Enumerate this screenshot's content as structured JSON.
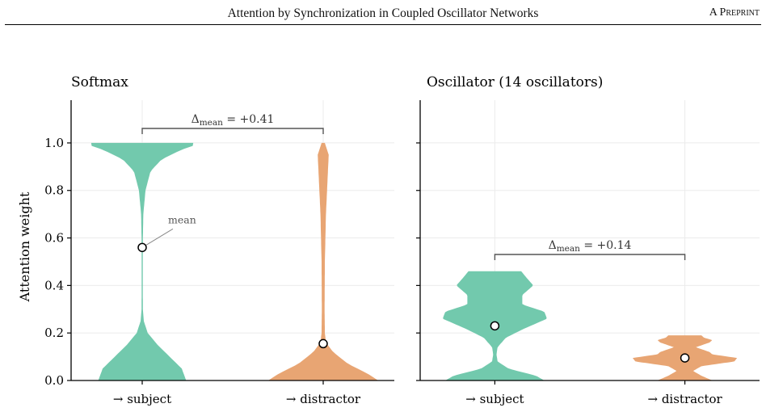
{
  "header": {
    "title": "Attention by Synchronization in Coupled Oscillator Networks",
    "tag": "A Preprint"
  },
  "colors": {
    "subject": "#72c9ad",
    "distractor": "#e8a573",
    "bracket": "#555555",
    "grid": "#ebebeb"
  },
  "chart_data": [
    {
      "type": "violin",
      "title": "Softmax",
      "ylabel": "Attention weight",
      "xlabel": "",
      "ylim": [
        0,
        1.18
      ],
      "yticks": [
        "0.0",
        "0.2",
        "0.4",
        "0.6",
        "0.8",
        "1.0"
      ],
      "ytick_values": [
        0,
        0.2,
        0.4,
        0.6,
        0.8,
        1.0
      ],
      "categories": [
        "→ subject",
        "→ distractor"
      ],
      "means": [
        0.56,
        0.155
      ],
      "density": [
        [
          [
            0,
            0.8
          ],
          [
            0.05,
            0.72
          ],
          [
            0.1,
            0.5
          ],
          [
            0.15,
            0.28
          ],
          [
            0.2,
            0.1
          ],
          [
            0.25,
            0.03
          ],
          [
            0.3,
            0.012
          ],
          [
            0.4,
            0.01
          ],
          [
            0.5,
            0.01
          ],
          [
            0.6,
            0.012
          ],
          [
            0.7,
            0.02
          ],
          [
            0.8,
            0.06
          ],
          [
            0.88,
            0.15
          ],
          [
            0.93,
            0.35
          ],
          [
            0.97,
            0.7
          ],
          [
            0.99,
            0.95
          ],
          [
            1.0,
            0.93
          ]
        ],
        [
          [
            0,
            1.0
          ],
          [
            0.03,
            0.8
          ],
          [
            0.07,
            0.45
          ],
          [
            0.12,
            0.18
          ],
          [
            0.16,
            0.05
          ],
          [
            0.2,
            0.03
          ],
          [
            0.3,
            0.025
          ],
          [
            0.5,
            0.03
          ],
          [
            0.7,
            0.05
          ],
          [
            0.85,
            0.08
          ],
          [
            0.95,
            0.1
          ],
          [
            1.0,
            0.03
          ]
        ]
      ],
      "annotation": {
        "text": "mean"
      },
      "bracket": {
        "label_symbol": "Δ",
        "label_sub": "mean",
        "label_value": " = +0.41"
      }
    },
    {
      "type": "violin",
      "title": "Oscillator (14 oscillators)",
      "xlabel": "",
      "ylim": [
        0,
        1.18
      ],
      "ytick_values": [
        0,
        0.2,
        0.4,
        0.6,
        0.8,
        1.0
      ],
      "categories": [
        "→ subject",
        "→ distractor"
      ],
      "means": [
        0.23,
        0.095
      ],
      "density": [
        [
          [
            0,
            0.9
          ],
          [
            0.02,
            0.75
          ],
          [
            0.05,
            0.25
          ],
          [
            0.08,
            0.05
          ],
          [
            0.11,
            0.03
          ],
          [
            0.14,
            0.05
          ],
          [
            0.18,
            0.2
          ],
          [
            0.22,
            0.55
          ],
          [
            0.26,
            0.95
          ],
          [
            0.29,
            0.9
          ],
          [
            0.32,
            0.5
          ],
          [
            0.36,
            0.5
          ],
          [
            0.4,
            0.7
          ],
          [
            0.44,
            0.55
          ],
          [
            0.46,
            0.48
          ]
        ],
        [
          [
            0,
            0.5
          ],
          [
            0.02,
            0.3
          ],
          [
            0.04,
            0.15
          ],
          [
            0.06,
            0.3
          ],
          [
            0.08,
            0.9
          ],
          [
            0.095,
            0.95
          ],
          [
            0.11,
            0.5
          ],
          [
            0.12,
            0.45
          ],
          [
            0.14,
            0.2
          ],
          [
            0.16,
            0.45
          ],
          [
            0.17,
            0.5
          ],
          [
            0.18,
            0.35
          ],
          [
            0.19,
            0.3
          ]
        ]
      ],
      "bracket": {
        "label_symbol": "Δ",
        "label_sub": "mean",
        "label_value": " = +0.14"
      }
    }
  ]
}
